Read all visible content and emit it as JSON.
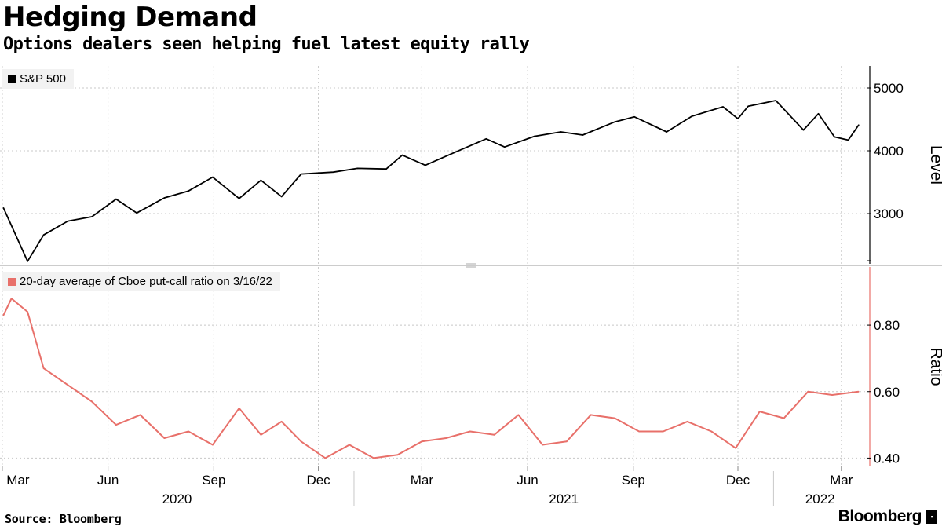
{
  "title": "Hedging Demand",
  "subtitle": "Options dealers seen helping fuel latest equity rally",
  "source": "Source: Bloomberg",
  "brand": "Bloomberg",
  "colors": {
    "sp500": "#000000",
    "putcall": "#e8706a",
    "grid": "#c8c8c8",
    "legend_bg": "#f2f2f2"
  },
  "x_axis": {
    "months": [
      "Mar",
      "Jun",
      "Sep",
      "Dec",
      "Mar",
      "Jun",
      "Sep",
      "Dec",
      "Mar"
    ],
    "years": [
      "2020",
      "2021",
      "2022"
    ]
  },
  "chart_data": [
    {
      "type": "line",
      "legend": "S&P 500",
      "ylabel": "Level",
      "ylim": [
        2200,
        5350
      ],
      "yticks": [
        "5000",
        "4000",
        "3000"
      ],
      "x": [
        "2020-03-02",
        "2020-03-23",
        "2020-04-06",
        "2020-04-27",
        "2020-05-18",
        "2020-06-08",
        "2020-06-26",
        "2020-07-20",
        "2020-08-10",
        "2020-08-31",
        "2020-09-23",
        "2020-10-12",
        "2020-10-30",
        "2020-11-16",
        "2020-12-14",
        "2021-01-04",
        "2021-01-29",
        "2021-02-12",
        "2021-03-04",
        "2021-03-29",
        "2021-04-26",
        "2021-05-12",
        "2021-06-07",
        "2021-06-30",
        "2021-07-19",
        "2021-08-16",
        "2021-09-02",
        "2021-09-30",
        "2021-10-22",
        "2021-11-18",
        "2021-12-01",
        "2021-12-10",
        "2022-01-03",
        "2022-01-27",
        "2022-02-09",
        "2022-02-23",
        "2022-03-07",
        "2022-03-16"
      ],
      "series": [
        {
          "values": [
            3090,
            2240,
            2660,
            2880,
            2950,
            3230,
            3010,
            3250,
            3360,
            3580,
            3240,
            3530,
            3270,
            3630,
            3660,
            3720,
            3710,
            3930,
            3770,
            3970,
            4190,
            4060,
            4230,
            4300,
            4250,
            4460,
            4540,
            4300,
            4550,
            4700,
            4510,
            4710,
            4800,
            4330,
            4590,
            4220,
            4170,
            4410
          ]
        }
      ]
    },
    {
      "type": "line",
      "legend": "20-day average of Cboe put-call ratio on 3/16/22",
      "ylabel": "Ratio",
      "ylim": [
        0.375,
        0.975
      ],
      "yticks": [
        "0.80",
        "0.60",
        "0.40"
      ],
      "x": [
        "2020-03-02",
        "2020-03-09",
        "2020-03-23",
        "2020-04-06",
        "2020-04-27",
        "2020-05-18",
        "2020-06-08",
        "2020-06-29",
        "2020-07-20",
        "2020-08-10",
        "2020-08-31",
        "2020-09-23",
        "2020-10-12",
        "2020-10-30",
        "2020-11-16",
        "2020-12-07",
        "2020-12-28",
        "2021-01-18",
        "2021-02-08",
        "2021-03-01",
        "2021-03-22",
        "2021-04-12",
        "2021-05-03",
        "2021-05-24",
        "2021-06-14",
        "2021-07-05",
        "2021-07-26",
        "2021-08-16",
        "2021-09-06",
        "2021-09-27",
        "2021-10-18",
        "2021-11-08",
        "2021-11-29",
        "2021-12-20",
        "2022-01-10",
        "2022-01-31",
        "2022-02-21",
        "2022-03-16"
      ],
      "series": [
        {
          "values": [
            0.83,
            0.88,
            0.84,
            0.67,
            0.62,
            0.57,
            0.5,
            0.53,
            0.46,
            0.48,
            0.44,
            0.55,
            0.47,
            0.51,
            0.45,
            0.4,
            0.44,
            0.4,
            0.41,
            0.45,
            0.46,
            0.48,
            0.47,
            0.53,
            0.44,
            0.45,
            0.53,
            0.52,
            0.48,
            0.48,
            0.51,
            0.48,
            0.43,
            0.54,
            0.52,
            0.6,
            0.59,
            0.6
          ]
        }
      ]
    }
  ]
}
